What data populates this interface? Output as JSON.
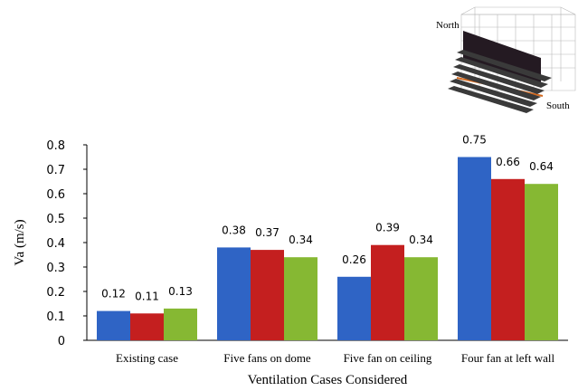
{
  "chart_data": {
    "type": "bar",
    "title": "",
    "xlabel": "Ventilation Cases Considered",
    "ylabel": "Va (m/s)",
    "categories": [
      "Existing case",
      "Five fans on dome",
      "Five fan on ceiling",
      "Four fan at left wall"
    ],
    "series": [
      {
        "values": [
          0.12,
          0.38,
          0.26,
          0.75
        ],
        "color": "#2f64c5"
      },
      {
        "values": [
          0.11,
          0.37,
          0.39,
          0.66
        ],
        "color": "#c41f1f"
      },
      {
        "values": [
          0.13,
          0.34,
          0.34,
          0.64
        ],
        "color": "#86b833"
      }
    ],
    "data_labels": [
      [
        "0.12",
        "0.38",
        "0.26",
        "0.75"
      ],
      [
        "0.11",
        "0.37",
        "0.39",
        "0.66"
      ],
      [
        "0.13",
        "0.34",
        "0.34",
        "0.64"
      ]
    ],
    "ylim": [
      0,
      0.8
    ],
    "yticks": [
      "0",
      "0.1",
      "0.2",
      "0.3",
      "0.4",
      "0.5",
      "0.6",
      "0.7",
      "0.8"
    ],
    "grid": false,
    "legend": "none"
  },
  "inset": {
    "label_north": "North",
    "label_south": "South"
  }
}
